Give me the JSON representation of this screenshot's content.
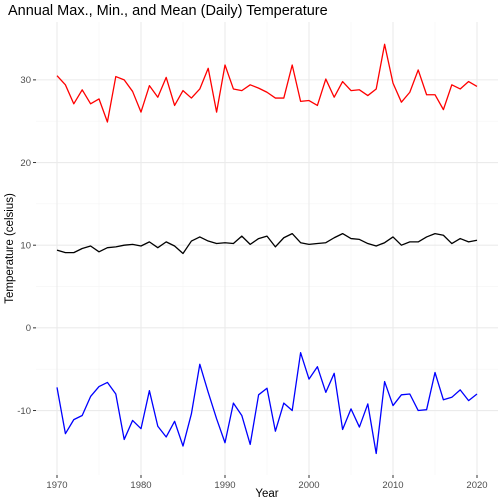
{
  "chart_data": {
    "type": "line",
    "title": "Annual Max., Min., and Mean (Daily) Temperature",
    "xlabel": "Year",
    "ylabel": "Temperature (celsius)",
    "xlim": [
      1967.5,
      2022.5
    ],
    "ylim": [
      -17.8,
      37.0
    ],
    "x_ticks": [
      1970,
      1980,
      1990,
      2000,
      2010,
      2020
    ],
    "y_ticks": [
      -10,
      0,
      10,
      20,
      30
    ],
    "grid": true,
    "legend": "none",
    "x": [
      1970,
      1971,
      1972,
      1973,
      1974,
      1975,
      1976,
      1977,
      1978,
      1979,
      1980,
      1981,
      1982,
      1983,
      1984,
      1985,
      1986,
      1987,
      1988,
      1989,
      1990,
      1991,
      1992,
      1993,
      1994,
      1995,
      1996,
      1997,
      1998,
      1999,
      2000,
      2001,
      2002,
      2003,
      2004,
      2005,
      2006,
      2007,
      2008,
      2009,
      2010,
      2011,
      2012,
      2013,
      2014,
      2015,
      2016,
      2017,
      2018,
      2019,
      2020
    ],
    "series": [
      {
        "color": "#ff0000",
        "values": [
          30.5,
          29.4,
          27.1,
          28.8,
          27.1,
          27.7,
          24.9,
          30.4,
          30.0,
          28.6,
          26.1,
          29.3,
          27.9,
          30.3,
          26.9,
          28.7,
          27.8,
          28.9,
          31.4,
          26.1,
          31.8,
          28.9,
          28.7,
          29.4,
          29.0,
          28.5,
          27.8,
          27.8,
          31.8,
          27.4,
          27.5,
          26.9,
          30.1,
          27.9,
          29.8,
          28.7,
          28.8,
          28.1,
          28.9,
          34.3,
          29.6,
          27.3,
          28.5,
          31.2,
          28.2,
          28.2,
          26.4,
          29.4,
          28.9,
          29.8,
          29.2
        ]
      },
      {
        "color": "#000000",
        "values": [
          9.4,
          9.1,
          9.1,
          9.6,
          9.9,
          9.2,
          9.7,
          9.8,
          10.0,
          10.1,
          9.9,
          10.4,
          9.7,
          10.4,
          9.9,
          9.0,
          10.5,
          11.0,
          10.5,
          10.2,
          10.3,
          10.2,
          11.1,
          10.1,
          10.8,
          11.1,
          9.8,
          10.9,
          11.4,
          10.3,
          10.1,
          10.2,
          10.3,
          10.9,
          11.4,
          10.8,
          10.7,
          10.2,
          9.9,
          10.3,
          11.0,
          10.0,
          10.4,
          10.4,
          11.0,
          11.4,
          11.2,
          10.2,
          10.8,
          10.4,
          10.6
        ]
      },
      {
        "color": "#0000ff",
        "values": [
          -7.2,
          -12.8,
          -11.1,
          -10.6,
          -8.3,
          -7.1,
          -6.6,
          -8.0,
          -13.5,
          -11.2,
          -12.2,
          -7.6,
          -11.9,
          -13.2,
          -11.3,
          -14.3,
          -10.4,
          -4.4,
          -7.8,
          -11.0,
          -13.9,
          -9.1,
          -10.6,
          -14.1,
          -8.1,
          -7.3,
          -12.5,
          -9.1,
          -10.0,
          -3.0,
          -6.2,
          -4.7,
          -7.8,
          -5.5,
          -12.3,
          -9.8,
          -12.0,
          -9.2,
          -15.2,
          -6.5,
          -9.4,
          -8.1,
          -8.0,
          -10.0,
          -9.9,
          -5.4,
          -8.7,
          -8.4,
          -7.5,
          -8.8,
          -8.0
        ]
      }
    ]
  }
}
